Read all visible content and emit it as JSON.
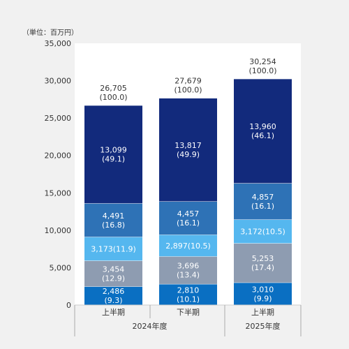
{
  "chart_data": {
    "type": "bar",
    "stacked": true,
    "unit_label": "（単位：百万円）",
    "title": "",
    "xlabel": "",
    "ylabel": "",
    "ylim": [
      0,
      35000
    ],
    "yticks": [
      "0",
      "5,000",
      "10,000",
      "15,000",
      "20,000",
      "25,000",
      "30,000",
      "35,000"
    ],
    "ytick_values": [
      0,
      5000,
      10000,
      15000,
      20000,
      25000,
      30000,
      35000
    ],
    "grid": false,
    "legend": "none",
    "categories": [
      "上半期",
      "下半期",
      "上半期"
    ],
    "groups": [
      {
        "label": "2024年度",
        "span": [
          0,
          1
        ]
      },
      {
        "label": "2025年度",
        "span": [
          2,
          2
        ]
      }
    ],
    "totals": [
      {
        "value": 26705,
        "label": "26,705",
        "pct": "(100.0)"
      },
      {
        "value": 27679,
        "label": "27,679",
        "pct": "(100.0)"
      },
      {
        "value": 30254,
        "label": "30,254",
        "pct": "(100.0)"
      }
    ],
    "series": [
      {
        "color": "#0a6fc2",
        "values": [
          2486,
          2810,
          3010
        ],
        "labels": [
          [
            "2,486",
            "(9.3)"
          ],
          [
            "2,810",
            "(10.1)"
          ],
          [
            "3,010",
            "(9.9)"
          ]
        ]
      },
      {
        "color": "#8e9cb1",
        "values": [
          3454,
          3696,
          5253
        ],
        "labels": [
          [
            "3,454",
            "(12.9)"
          ],
          [
            "3,696",
            "(13.4)"
          ],
          [
            "5,253",
            "(17.4)"
          ]
        ]
      },
      {
        "color": "#55b7ef",
        "values": [
          3173,
          2897,
          3172
        ],
        "labels": [
          [
            "3,173(11.9)"
          ],
          [
            "2,897(10.5)"
          ],
          [
            "3,172(10.5)"
          ]
        ]
      },
      {
        "color": "#2e72b6",
        "values": [
          4491,
          4457,
          4857
        ],
        "labels": [
          [
            "4,491",
            "(16.8)"
          ],
          [
            "4,457",
            "(16.1)"
          ],
          [
            "4,857",
            "(16.1)"
          ]
        ]
      },
      {
        "color": "#122a7c",
        "values": [
          13099,
          13817,
          13960
        ],
        "labels": [
          [
            "13,099",
            "(49.1)"
          ],
          [
            "13,817",
            "(49.9)"
          ],
          [
            "13,960",
            "(46.1)"
          ]
        ]
      }
    ]
  }
}
